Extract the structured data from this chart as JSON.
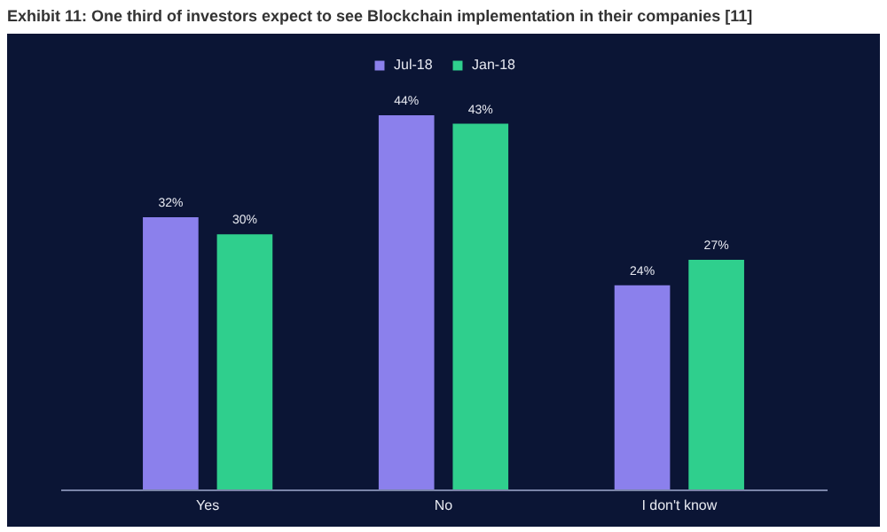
{
  "chart_data": {
    "type": "bar",
    "title": "Exhibit 11: One third of investors expect to see Blockchain implementation in their companies [11]",
    "categories": [
      "Yes",
      "No",
      "I don't know"
    ],
    "series": [
      {
        "name": "Jul-18",
        "color": "#8b80ec",
        "values": [
          32,
          44,
          24
        ],
        "value_labels": [
          "32%",
          "44%",
          "24%"
        ]
      },
      {
        "name": "Jan-18",
        "color": "#2fcf8d",
        "values": [
          30,
          43,
          27
        ],
        "value_labels": [
          "30%",
          "43%",
          "27%"
        ]
      }
    ],
    "legend": "top"
  }
}
